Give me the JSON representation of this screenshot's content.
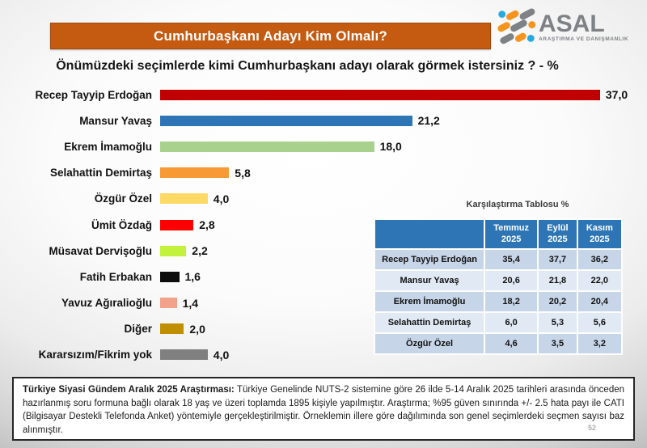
{
  "header": {
    "title": "Cumhurbaşkanı Adayı Kim Olmalı?",
    "banner_color": "#C55A11",
    "question": "Önümüzdeki seçimlerde kimi Cumhurbaşkanı adayı olarak görmek istersiniz ? - %"
  },
  "logo": {
    "name": "ASAL",
    "tagline": "ARAŞTIRMA VE DANIŞMANLIK",
    "colors": {
      "gray": "#7e8185",
      "orange": "#F7941E",
      "blue": "#27AAE1"
    }
  },
  "chart_data": {
    "type": "bar",
    "orientation": "horizontal",
    "title": "Önümüzdeki seçimlerde kimi Cumhurbaşkanı adayı olarak görmek istersiniz ? - %",
    "categories": [
      "Recep Tayyip Erdoğan",
      "Mansur Yavaş",
      "Ekrem İmamoğlu",
      "Selahattin Demirtaş",
      "Özgür Özel",
      "Ümit Özdağ",
      "Müsavat Dervişoğlu",
      "Fatih Erbakan",
      "Yavuz Ağıralioğlu",
      "Diğer",
      "Kararsızım/Fikrim yok"
    ],
    "values": [
      37.0,
      21.2,
      18.0,
      5.8,
      4.0,
      2.8,
      2.2,
      1.6,
      1.4,
      2.0,
      4.0
    ],
    "labels": [
      "37,0",
      "21,2",
      "18,0",
      "5,8",
      "4,0",
      "2,8",
      "2,2",
      "1,6",
      "1,4",
      "2,0",
      "4,0"
    ],
    "colors": [
      "#C00000",
      "#2E75B6",
      "#A9D18E",
      "#F79A35",
      "#FFD966",
      "#FF0000",
      "#C3F23C",
      "#0D0D0D",
      "#F2A18A",
      "#BF8F00",
      "#808080"
    ],
    "xlim": [
      0,
      40
    ],
    "grid": false,
    "legend": false
  },
  "table": {
    "title": "Karşılaştırma Tablosu %",
    "header_bg": "#2E75B6",
    "row_colors": [
      "#C7D5E8",
      "#E0E9F4"
    ],
    "columns": [
      "Temmuz 2025",
      "Eylül 2025",
      "Kasım 2025"
    ],
    "rows": [
      {
        "name": "Recep Tayyip Erdoğan",
        "values": [
          "35,4",
          "37,7",
          "36,2"
        ]
      },
      {
        "name": "Mansur Yavaş",
        "values": [
          "20,6",
          "21,8",
          "22,0"
        ]
      },
      {
        "name": "Ekrem İmamoğlu",
        "values": [
          "18,2",
          "20,2",
          "20,4"
        ]
      },
      {
        "name": "Selahattin Demirtaş",
        "values": [
          "6,0",
          "5,3",
          "5,6"
        ]
      },
      {
        "name": "Özgür Özel",
        "values": [
          "4,6",
          "3,5",
          "3,2"
        ]
      }
    ]
  },
  "footer": {
    "bold": "Türkiye Siyasi Gündem Aralık 2025 Araştırması:",
    "text": "Türkiye Genelinde NUTS-2 sistemine göre 26 ilde 5-14 Aralık 2025 tarihleri arasında önceden hazırlanmış soru formuna bağlı olarak 18 yaş ve üzeri toplamda 1895 kişiyle yapılmıştır. Araştırma; %95 güven sınırında +/- 2.5 hata payı ile CATI (Bilgisayar Destekli Telefonda Anket) yöntemiyle gerçekleştirilmiştir. Örneklemin illere göre dağılımında son genel seçimlerdeki seçmen sayısı baz alınmıştır.",
    "page": "52"
  }
}
